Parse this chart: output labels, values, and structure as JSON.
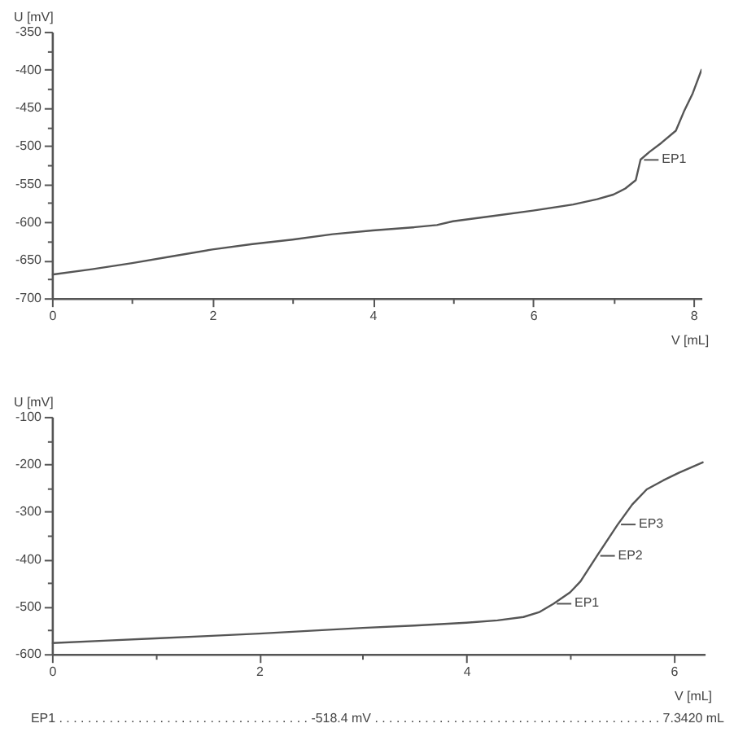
{
  "chart_data": [
    {
      "type": "line",
      "xlabel": "V [mL]",
      "ylabel": "U [mV]",
      "xlim": [
        0,
        8.1
      ],
      "ylim": [
        -700,
        -350
      ],
      "xticks": [
        0,
        {
          "value": 1,
          "label": null
        },
        2,
        {
          "value": 3,
          "label": null
        },
        4,
        {
          "value": 5,
          "label": null
        },
        6,
        {
          "value": 7,
          "label": null
        },
        8
      ],
      "yticks": [
        -700,
        {
          "value": -675,
          "label": null
        },
        -650,
        {
          "value": -625,
          "label": null
        },
        -600,
        {
          "value": -575,
          "label": null
        },
        -550,
        {
          "value": -525,
          "label": null
        },
        -500,
        {
          "value": -475,
          "label": null
        },
        -450,
        {
          "value": -425,
          "label": null
        },
        -400,
        {
          "value": -375,
          "label": null
        },
        -350
      ],
      "x": [
        0,
        0.5,
        1.0,
        1.5,
        2.0,
        2.5,
        3.0,
        3.5,
        4.0,
        4.5,
        4.8,
        5.0,
        5.5,
        6.0,
        6.5,
        6.8,
        7.0,
        7.15,
        7.28,
        7.34,
        7.45,
        7.6,
        7.78,
        7.88,
        7.99,
        8.1
      ],
      "series": [
        {
          "color": "#555555",
          "values": [
            -669,
            -662,
            -654,
            -645,
            -636,
            -629,
            -623,
            -616,
            -611,
            -607,
            -604,
            -599,
            -592,
            -585,
            -577,
            -570,
            -564,
            -556,
            -545,
            -518,
            -508,
            -496,
            -480,
            -455,
            -431,
            -400
          ]
        }
      ],
      "annotations": [
        {
          "text": "EP1",
          "x": 7.342,
          "y": -518.4
        }
      ]
    },
    {
      "type": "line",
      "xlabel": "V [mL]",
      "ylabel": "U [mV]",
      "xlim": [
        0,
        6.3
      ],
      "ylim": [
        -600,
        -100
      ],
      "xticks": [
        0,
        {
          "value": 1,
          "label": null
        },
        2,
        {
          "value": 3,
          "label": null
        },
        4,
        {
          "value": 5,
          "label": null
        },
        6
      ],
      "yticks": [
        -600,
        {
          "value": -550,
          "label": null
        },
        -500,
        {
          "value": -450,
          "label": null
        },
        -400,
        {
          "value": -350,
          "label": null
        },
        -300,
        {
          "value": -250,
          "label": null
        },
        -200,
        {
          "value": -150,
          "label": null
        },
        -100
      ],
      "x": [
        0,
        0.5,
        1.0,
        1.5,
        2.0,
        2.5,
        3.0,
        3.5,
        4.0,
        4.3,
        4.55,
        4.7,
        4.84,
        5.0,
        5.1,
        5.18,
        5.26,
        5.36,
        5.46,
        5.6,
        5.74,
        5.9,
        6.05,
        6.28
      ],
      "series": [
        {
          "color": "#555555",
          "values": [
            -577,
            -572,
            -567,
            -562,
            -557,
            -551,
            -545,
            -540,
            -534,
            -529,
            -522,
            -512,
            -494,
            -470,
            -447,
            -420,
            -393,
            -360,
            -327,
            -285,
            -253,
            -234,
            -218,
            -196
          ]
        }
      ],
      "annotations": [
        {
          "text": "EP1",
          "x": 4.84,
          "y": -494
        },
        {
          "text": "EP2",
          "x": 5.26,
          "y": -393
        },
        {
          "text": "EP3",
          "x": 5.46,
          "y": -327
        },
        "EP1 . . . . . . . . . . . . . . . . . . . . . . . . . . . . . . . . . . . -518.4 mV . . . . . . . . . . . . . . . . . . . . . . . . . . . . . . . . . . . . . . . . 7.3420 mL"
      ]
    }
  ]
}
